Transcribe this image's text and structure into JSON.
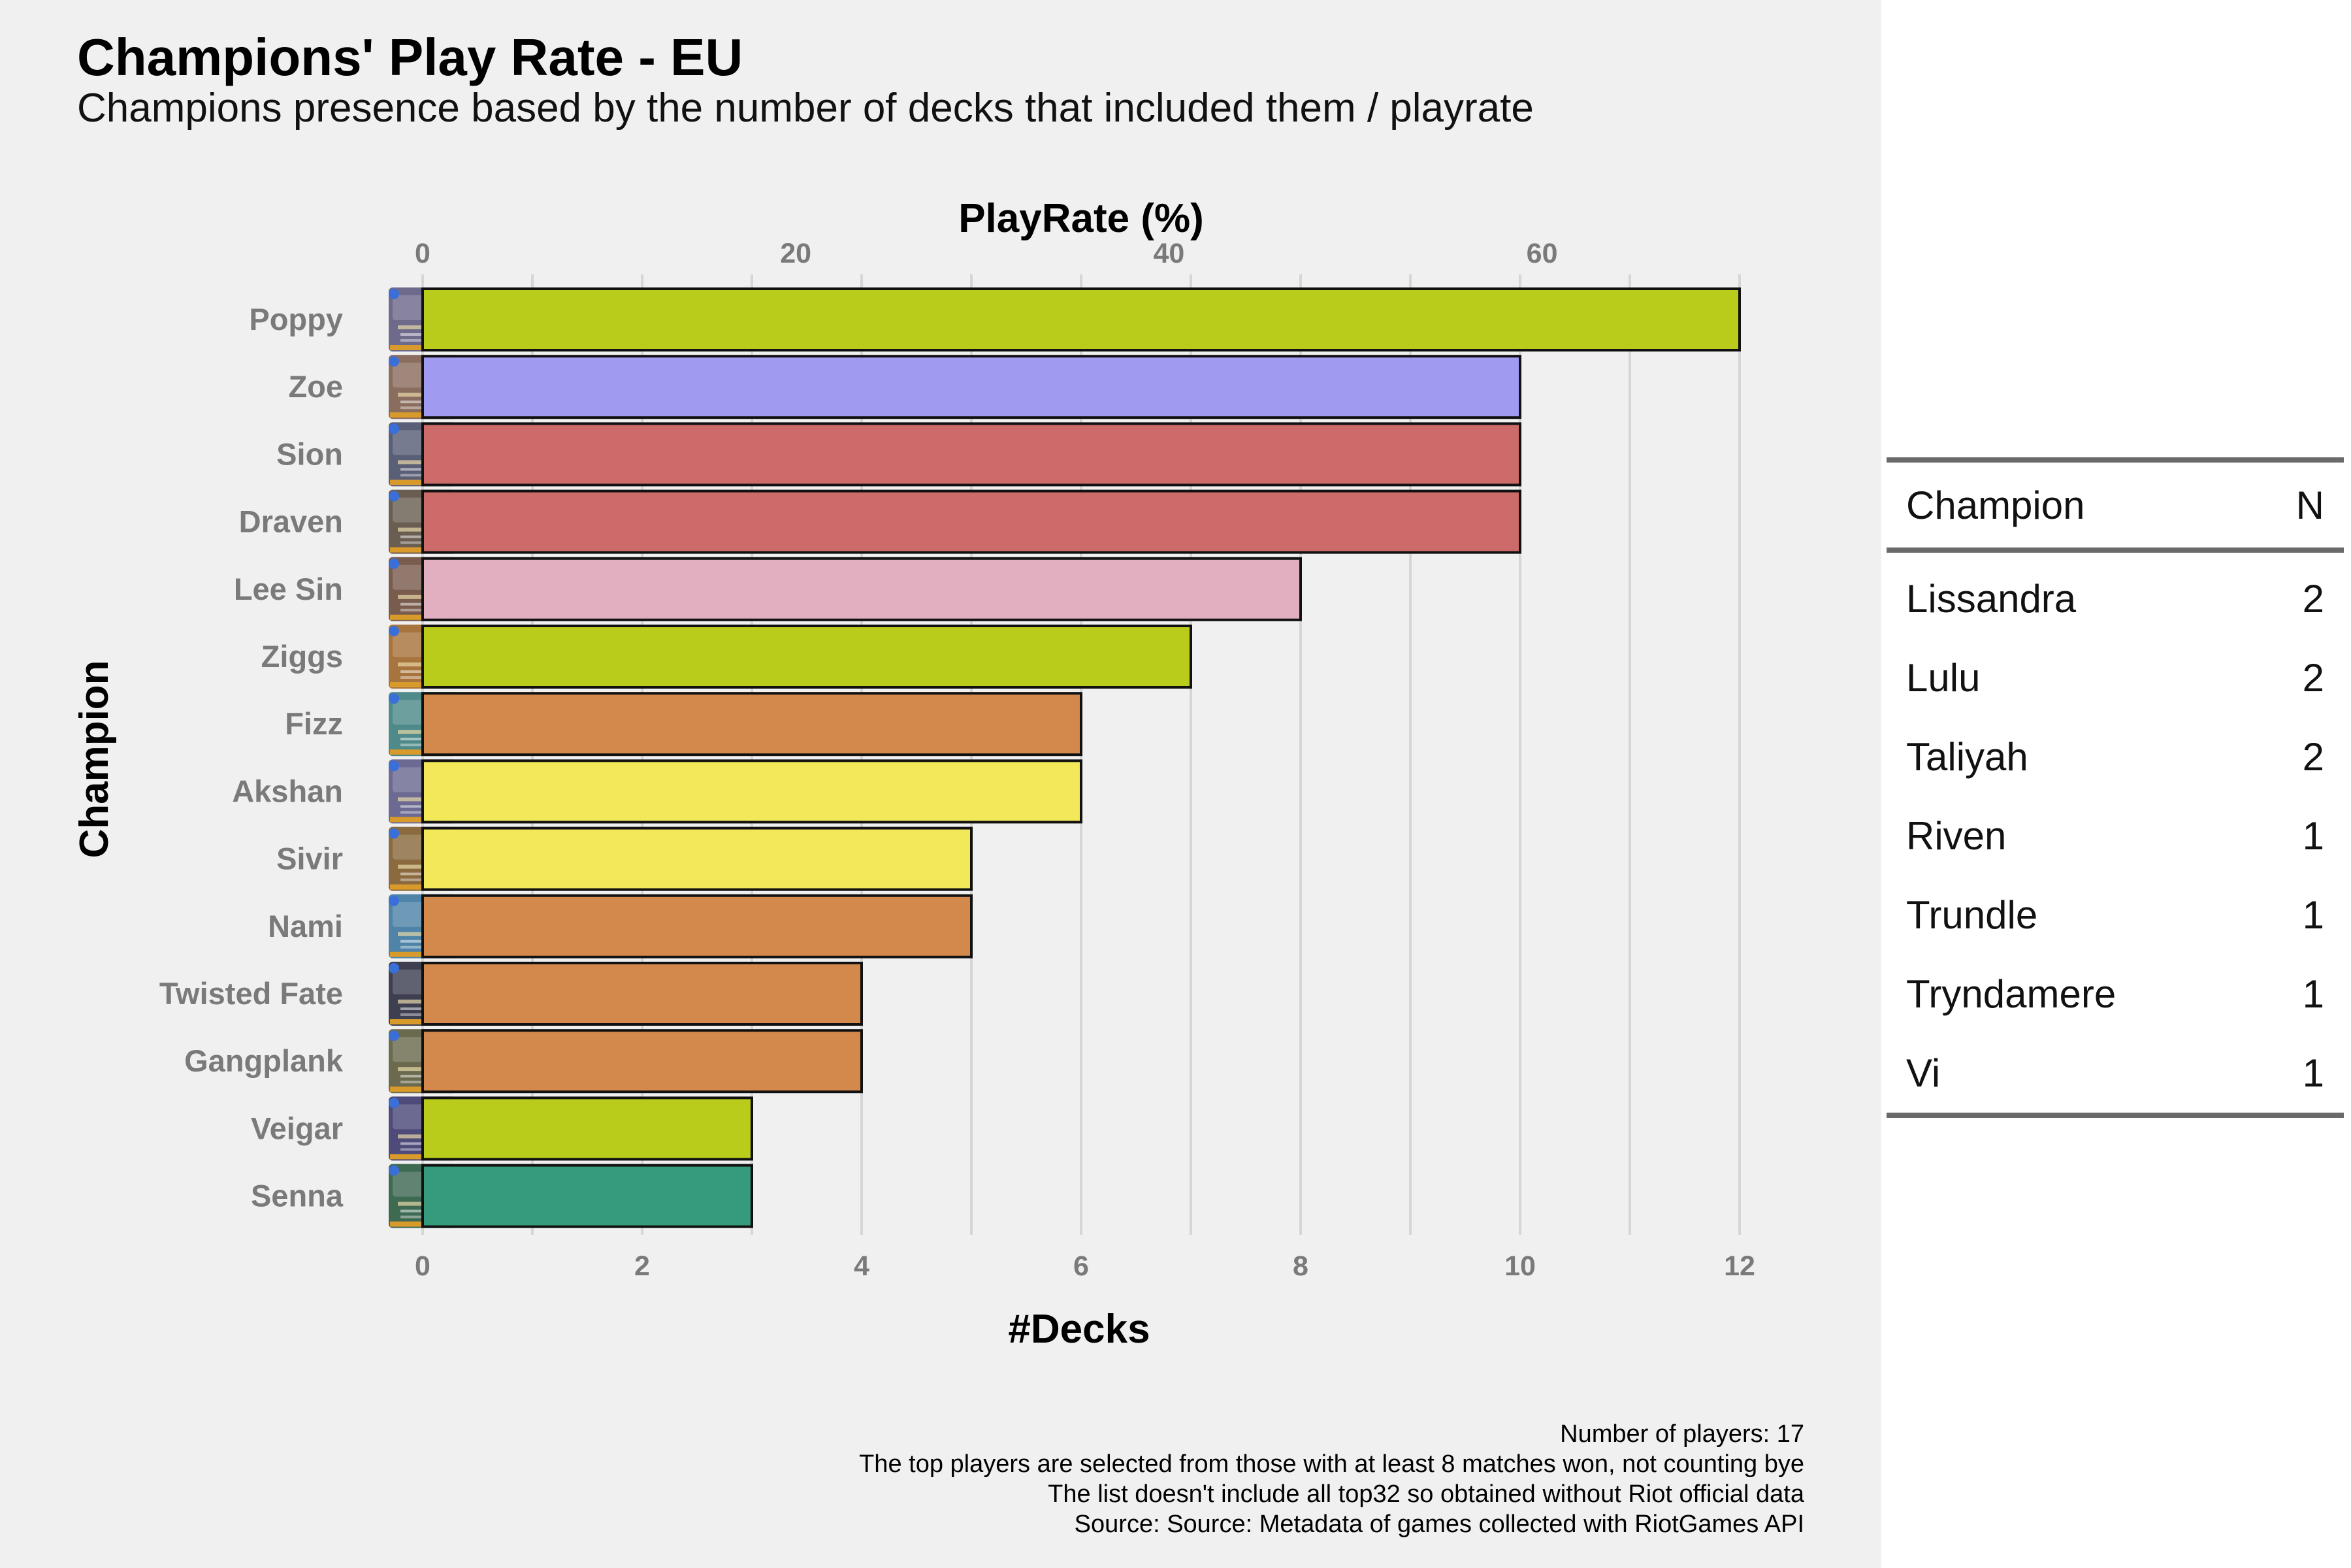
{
  "title": "Champions' Play Rate - EU",
  "subtitle": "Champions presence based by the number of decks that included them / playrate",
  "caption": [
    "Number of players: 17",
    "The top players are selected from those with at least 8 matches won, not counting bye",
    "The list doesn't include all top32 so obtained without Riot official data",
    "Source: Source: Metadata of games collected with RiotGames API"
  ],
  "chart_data": {
    "type": "bar",
    "orientation": "horizontal",
    "xlabel": "#Decks",
    "x2label": "PlayRate (%)",
    "ylabel": "Champion",
    "xlim": [
      0,
      12
    ],
    "x_ticks": [
      0,
      2,
      4,
      6,
      8,
      10,
      12
    ],
    "x2_ticks": [
      0,
      20,
      40,
      60
    ],
    "grid": true,
    "categories": [
      "Poppy",
      "Zoe",
      "Sion",
      "Draven",
      "Lee Sin",
      "Ziggs",
      "Fizz",
      "Akshan",
      "Sivir",
      "Nami",
      "Twisted Fate",
      "Gangplank",
      "Veigar",
      "Senna"
    ],
    "values": [
      12,
      10,
      10,
      10,
      8,
      7,
      6,
      6,
      5,
      5,
      4,
      4,
      3,
      3
    ],
    "colors": [
      "#b9cb1b",
      "#a09bf0",
      "#cd6b6a",
      "#cd6b6a",
      "#e2afc0",
      "#b9cb1b",
      "#d3894c",
      "#f2e85a",
      "#f2e85a",
      "#d3894c",
      "#d3894c",
      "#d3894c",
      "#b9cb1b",
      "#359b7c"
    ],
    "icon_colors": [
      "#6e6a8c",
      "#8a6d5e",
      "#5a5f78",
      "#6a5e52",
      "#7a5c4e",
      "#a8743e",
      "#4f8a8a",
      "#6c6a92",
      "#8a6a3e",
      "#4f84a8",
      "#3e4052",
      "#6b6a4e",
      "#4e4a7a",
      "#3e6a52"
    ]
  },
  "table": {
    "headers": [
      "Champion",
      "N"
    ],
    "rows": [
      [
        "Lissandra",
        "2"
      ],
      [
        "Lulu",
        "2"
      ],
      [
        "Taliyah",
        "2"
      ],
      [
        "Riven",
        "1"
      ],
      [
        "Trundle",
        "1"
      ],
      [
        "Tryndamere",
        "1"
      ],
      [
        "Vi",
        "1"
      ]
    ]
  }
}
